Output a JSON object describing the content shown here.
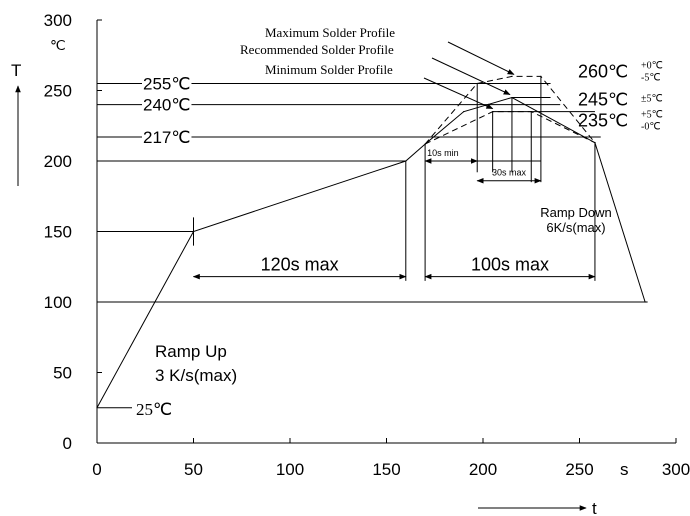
{
  "chart_data": {
    "type": "line",
    "x_axis": {
      "unit": "s",
      "label": "t",
      "range": [
        0,
        300
      ],
      "ticks": [
        0,
        50,
        100,
        150,
        200,
        250,
        300
      ]
    },
    "y_axis": {
      "unit": "℃",
      "label": "T",
      "range": [
        0,
        300
      ],
      "ticks": [
        0,
        50,
        100,
        150,
        200,
        250,
        300
      ]
    },
    "grid": false,
    "series": [
      {
        "name": "Maximum Solder Profile",
        "style": "dashed",
        "points": [
          [
            170,
            212
          ],
          [
            197,
            255
          ],
          [
            215,
            260
          ],
          [
            230,
            260
          ],
          [
            258,
            213
          ]
        ]
      },
      {
        "name": "Recommended Solder Profile",
        "style": "solid",
        "points": [
          [
            0,
            25
          ],
          [
            50,
            150
          ],
          [
            160,
            200
          ],
          [
            170,
            212
          ],
          [
            190,
            235
          ],
          [
            215,
            245
          ],
          [
            258,
            213
          ],
          [
            284,
            100
          ],
          [
            285,
            100
          ]
        ]
      },
      {
        "name": "Minimum Solder Profile",
        "style": "dashed",
        "points": [
          [
            170,
            212
          ],
          [
            205,
            235
          ],
          [
            225,
            235
          ],
          [
            258,
            213
          ]
        ]
      }
    ],
    "reference_lines": [
      {
        "y": 255,
        "label": "255℃"
      },
      {
        "y": 240,
        "label": "240℃"
      },
      {
        "y": 217,
        "label": "217℃"
      },
      {
        "y": 150
      },
      {
        "y": 100
      }
    ],
    "peak_labels": [
      {
        "main": "260℃",
        "upper": "+0℃",
        "lower": "-5℃"
      },
      {
        "main": "245℃",
        "upper": "±5℃"
      },
      {
        "main": "235℃",
        "upper": "+5℃",
        "lower": "-0℃"
      }
    ],
    "annotations": {
      "start_temp": "25℃",
      "span_preheat": "120s max",
      "span_above_liquidus": "100s max",
      "span_10s": "10s min",
      "span_30s": "30s max",
      "ramp_up": [
        "Ramp Up",
        "3 K/s(max)"
      ],
      "ramp_down": [
        "Ramp Down",
        "6K/s(max)"
      ]
    }
  }
}
